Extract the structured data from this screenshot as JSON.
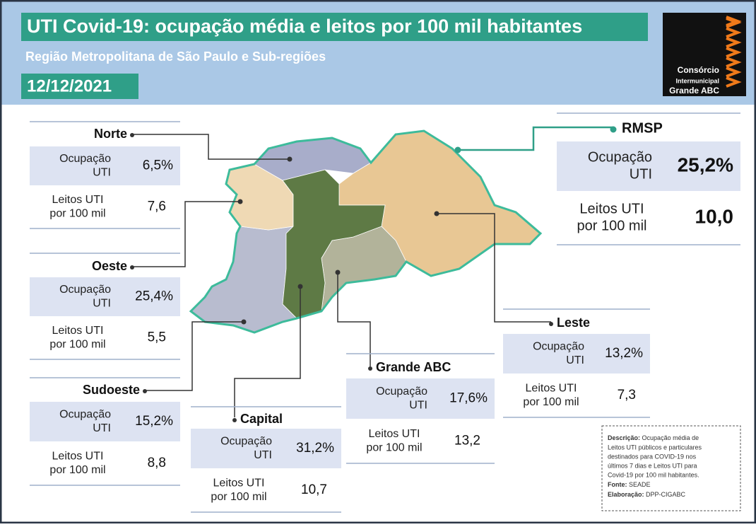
{
  "header": {
    "title": "UTI Covid-19: ocupação média e leitos por 100 mil habitantes",
    "subtitle": "Região Metropolitana de São Paulo e Sub-regiões",
    "date": "12/12/2021",
    "logo": [
      "Consórcio",
      "Intermunicipal",
      "Grande ABC"
    ]
  },
  "labels": {
    "occupancy": [
      "Ocupação",
      "UTI"
    ],
    "beds": [
      "Leitos UTI",
      "por 100 mil"
    ]
  },
  "regions": [
    {
      "name": "Norte",
      "occupancy": "6,5%",
      "beds": "7,6"
    },
    {
      "name": "Oeste",
      "occupancy": "25,4%",
      "beds": "5,5"
    },
    {
      "name": "Sudoeste",
      "occupancy": "15,2%",
      "beds": "8,8"
    },
    {
      "name": "Capital",
      "occupancy": "31,2%",
      "beds": "10,7"
    },
    {
      "name": "Grande ABC",
      "occupancy": "17,6%",
      "beds": "13,2"
    },
    {
      "name": "Leste",
      "occupancy": "13,2%",
      "beds": "7,3"
    },
    {
      "name": "RMSP",
      "occupancy": "25,2%",
      "beds": "10,0"
    }
  ],
  "note": {
    "description_label": "Descrição:",
    "description": [
      "Ocupação média de",
      "Leitos UTI públicos e particulares",
      "destinados para COVID-19 nos",
      "últimos 7 dias e Leitos UTI para",
      "Covid-19 por 100 mil habitantes."
    ],
    "source_label": "Fonte:",
    "source": "SEADE",
    "author_label": "Elaboração:",
    "author": "DPP-CIGABC"
  }
}
